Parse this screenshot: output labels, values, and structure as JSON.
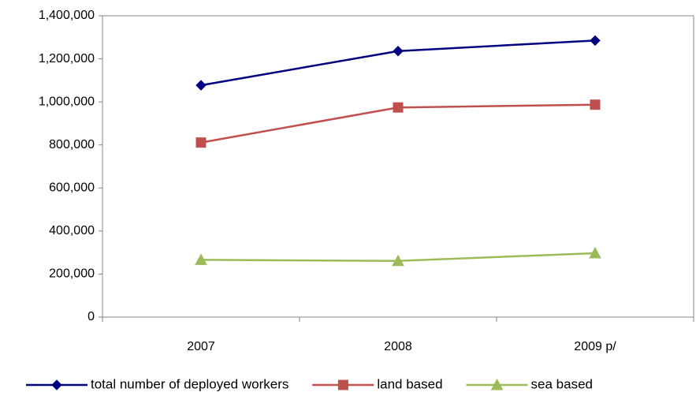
{
  "chart_data": {
    "type": "line",
    "categories": [
      "2007",
      "2008",
      "2009 p/"
    ],
    "series": [
      {
        "name": "total number of deployed workers",
        "color": "#000080",
        "marker": "diamond",
        "values": [
          1077000,
          1236000,
          1285000
        ]
      },
      {
        "name": "land based",
        "color": "#c0504d",
        "marker": "square",
        "values": [
          811000,
          974000,
          987000
        ]
      },
      {
        "name": "sea based",
        "color": "#9bbb59",
        "marker": "triangle",
        "values": [
          266000,
          261000,
          297000
        ]
      }
    ],
    "ylim": [
      0,
      1400000
    ],
    "yticks": [
      0,
      {
        "value": 200000,
        "label": "200,000"
      },
      {
        "value": 400000,
        "label": "400,000"
      },
      {
        "value": 600000,
        "label": "600,000"
      },
      {
        "value": 800000,
        "label": "800,000"
      },
      {
        "value": 1000000,
        "label": "1,000,000"
      },
      {
        "value": 1200000,
        "label": "1,200,000"
      },
      {
        "value": 1400000,
        "label": "1,400,000"
      }
    ],
    "grid": false,
    "legend": "bottom"
  }
}
